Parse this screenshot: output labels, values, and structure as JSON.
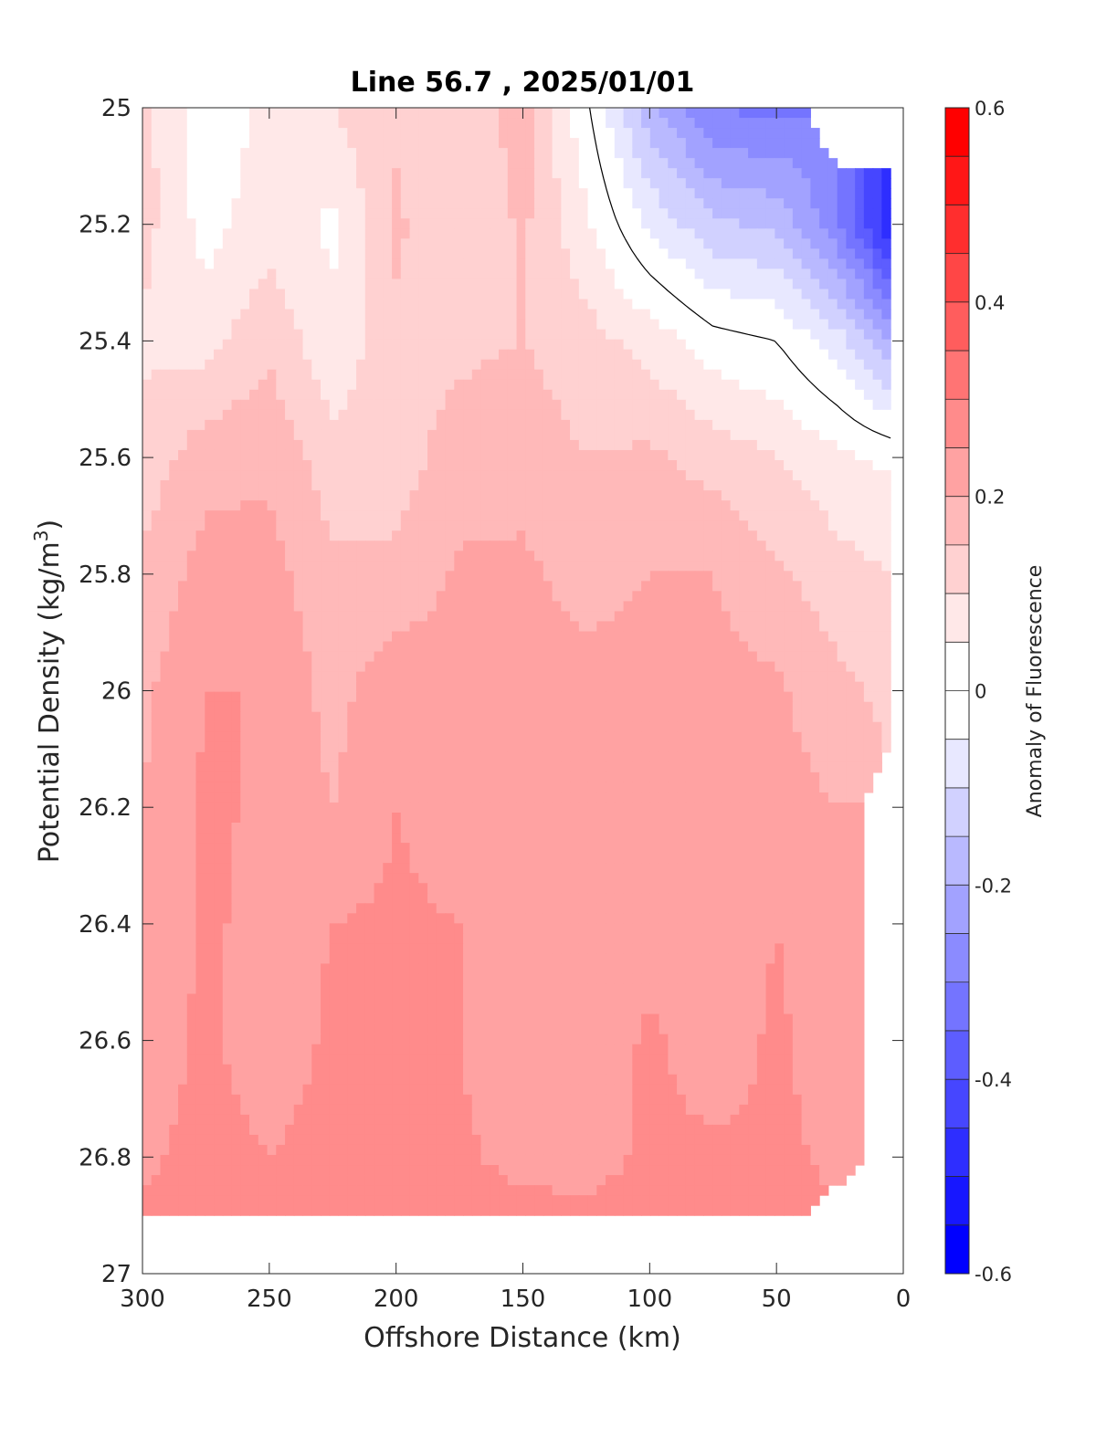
{
  "chart_data": {
    "type": "heatmap",
    "subtype": "filled-contour",
    "title": "Line 56.7 , 2025/01/01",
    "xlabel": "Offshore Distance (km)",
    "ylabel": "Potential Density (kg/m3)",
    "ylabel_parts": [
      "Potential Density (kg/m",
      "3",
      ")"
    ],
    "xlim": [
      300,
      0
    ],
    "x_reversed": true,
    "ylim": [
      25,
      27
    ],
    "y_reversed": true,
    "xticks": [
      "300",
      "250",
      "200",
      "150",
      "100",
      "50",
      "0"
    ],
    "xtick_values": [
      300,
      250,
      200,
      150,
      100,
      50,
      0
    ],
    "yticks": [
      "25",
      "25.2",
      "25.4",
      "25.6",
      "25.8",
      "26",
      "26.2",
      "26.4",
      "26.6",
      "26.8",
      "27"
    ],
    "ytick_values": [
      25,
      25.2,
      25.4,
      25.6,
      25.8,
      26,
      26.2,
      26.4,
      26.6,
      26.8,
      27
    ],
    "colorbar": {
      "label": "Anomaly of Fluorescence",
      "range": [
        -0.6,
        0.6
      ],
      "step": 0.05,
      "ticks": [
        "0.6",
        "0.4",
        "0.2",
        "0",
        "-0.2",
        "-0.4",
        "-0.6"
      ],
      "tick_values": [
        0.6,
        0.4,
        0.2,
        0,
        -0.2,
        -0.4,
        -0.6
      ],
      "colormap": "blue-white-red",
      "low_color": "#0000ff",
      "mid_color": "#ffffff",
      "high_color": "#ff0000"
    },
    "grid": false,
    "zero_contour": true,
    "data_extent_note_x": [
      0,
      300
    ],
    "field": {
      "x": [
        300,
        275,
        250,
        225,
        200,
        175,
        150,
        125,
        100,
        75,
        50,
        25,
        5
      ],
      "y": [
        25,
        25.2,
        25.4,
        25.6,
        25.8,
        26,
        26.2,
        26.4,
        26.6,
        26.8,
        26.9
      ],
      "values": [
        [
          0.12,
          0.02,
          0.06,
          0.1,
          0.14,
          0.1,
          0.18,
          0.01,
          -0.18,
          -0.3,
          -0.32,
          null,
          null
        ],
        [
          0.12,
          0.03,
          0.08,
          0.04,
          0.16,
          0.1,
          0.16,
          0.06,
          -0.06,
          -0.14,
          -0.16,
          -0.3,
          -0.5
        ],
        [
          0.09,
          0.08,
          0.14,
          0.06,
          0.14,
          0.14,
          0.15,
          0.12,
          0.08,
          0.02,
          0.0,
          -0.08,
          -0.2
        ],
        [
          0.12,
          0.18,
          0.19,
          0.12,
          0.13,
          0.17,
          0.18,
          0.15,
          0.16,
          0.13,
          0.1,
          0.06,
          0.04
        ],
        [
          0.16,
          0.22,
          0.22,
          0.16,
          0.16,
          0.21,
          0.21,
          0.18,
          0.2,
          0.2,
          0.16,
          0.12,
          0.1
        ],
        [
          0.19,
          0.25,
          0.25,
          0.18,
          0.24,
          0.22,
          0.22,
          0.22,
          0.22,
          0.22,
          0.21,
          0.16,
          0.14
        ],
        [
          0.2,
          0.26,
          0.24,
          0.2,
          0.25,
          0.22,
          0.22,
          0.22,
          0.22,
          0.22,
          0.22,
          0.2,
          null
        ],
        [
          0.21,
          0.26,
          0.23,
          0.25,
          0.26,
          0.25,
          0.21,
          0.22,
          0.23,
          0.22,
          0.25,
          0.21,
          null
        ],
        [
          0.22,
          0.26,
          0.22,
          0.26,
          0.27,
          0.25,
          0.21,
          0.21,
          0.26,
          0.22,
          0.26,
          0.22,
          null
        ],
        [
          0.24,
          0.27,
          0.25,
          0.27,
          0.28,
          0.26,
          0.23,
          0.23,
          0.26,
          0.26,
          0.26,
          0.24,
          null
        ],
        [
          0.26,
          0.27,
          0.27,
          0.27,
          0.29,
          0.28,
          0.27,
          0.26,
          0.27,
          0.27,
          0.27,
          null,
          null
        ]
      ]
    }
  }
}
